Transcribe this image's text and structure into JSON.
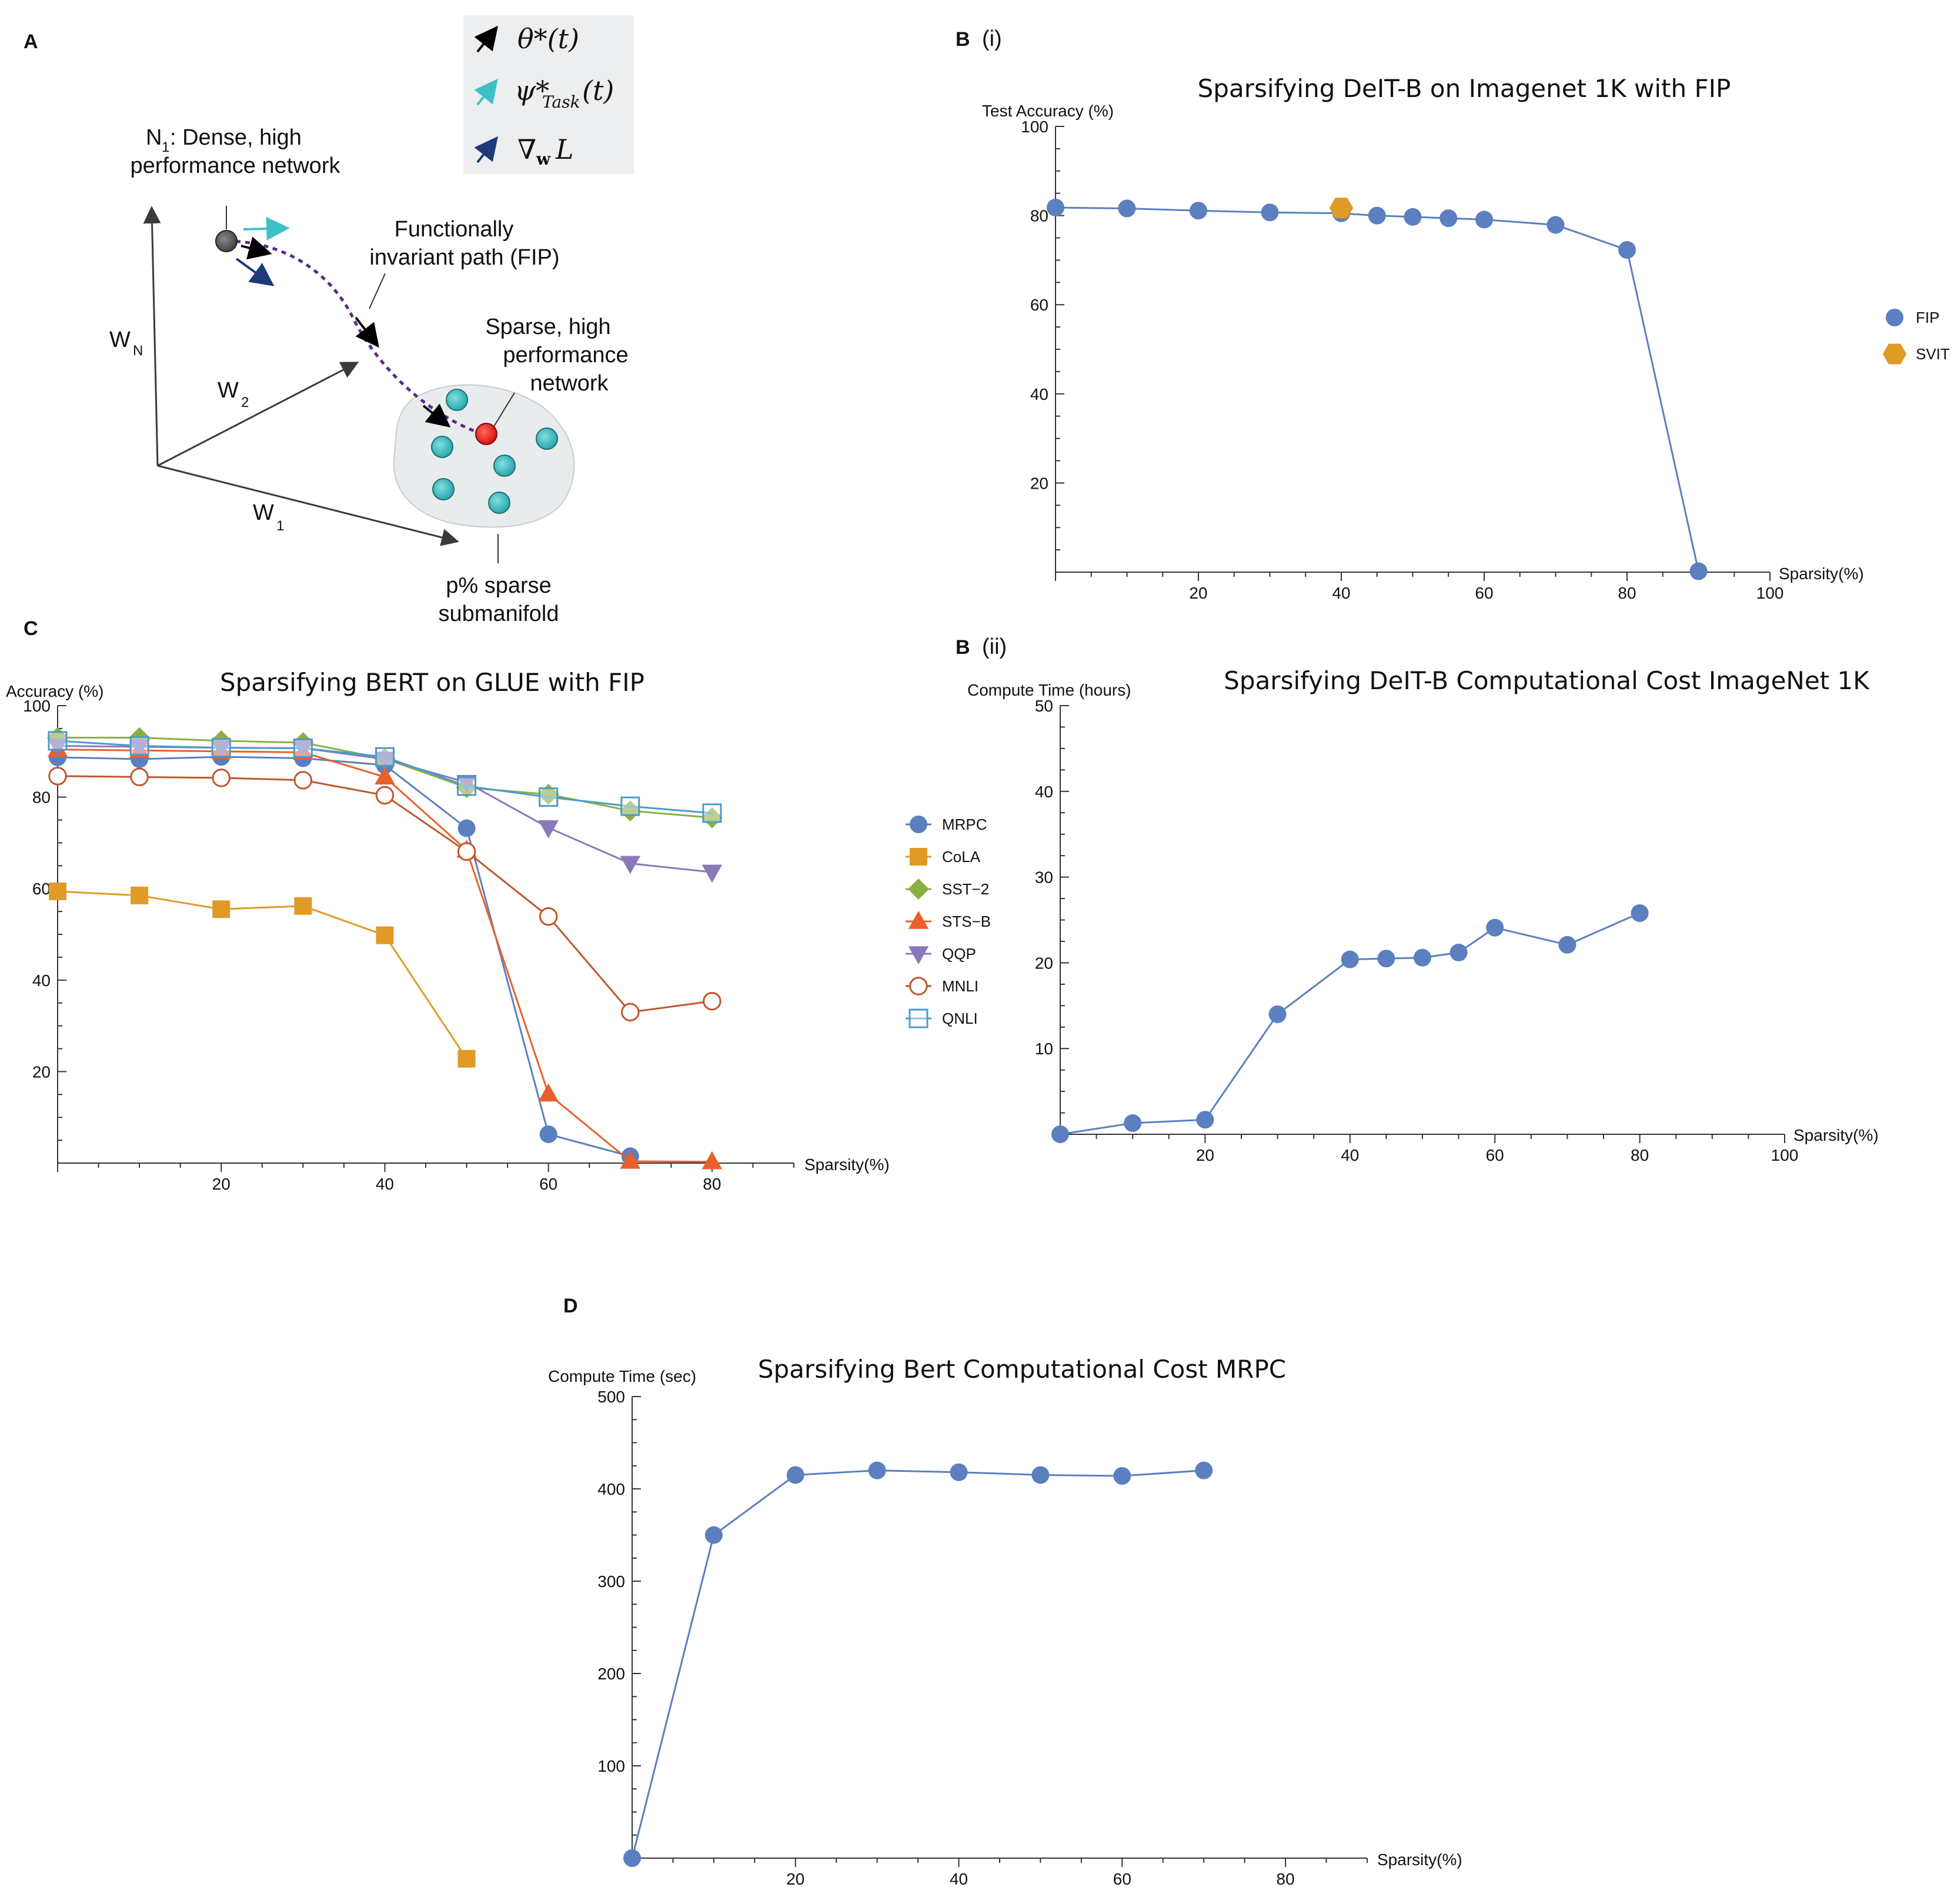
{
  "panels": {
    "A": "A",
    "Bi_letter": "B",
    "Bi_sub": "(i)",
    "Bii_letter": "B",
    "Bii_sub": "(ii)",
    "C": "C",
    "D": "D"
  },
  "diagram": {
    "legend_theta": "θ*(t)",
    "legend_psi": "ψ*",
    "legend_psi_sub": "Task",
    "legend_psi_tail": "(t)",
    "legend_grad": "∇",
    "legend_grad_sub": "w",
    "legend_grad_tail": "L",
    "n1_line1": "N",
    "n1_sub": "1",
    "n1_line1_tail": ":  Dense, high",
    "n1_line2": "performance network",
    "fip_line1": "Functionally",
    "fip_line2": "invariant path (FIP)",
    "sparse_line1": "Sparse, high",
    "sparse_line2": "performance",
    "sparse_line3": "network",
    "wn": "W",
    "wn_sub": "N",
    "w2": "W",
    "w2_sub": "2",
    "w1": "W",
    "w1_sub": "1",
    "manifold_line1": "p% sparse",
    "manifold_line2": "submanifold",
    "colors": {
      "teal": "#3ec1c6",
      "dark_blue": "#1f3a7a",
      "purple": "#5a2a8a",
      "red": "#e8211d"
    }
  },
  "chart_data": [
    {
      "id": "Bi",
      "type": "scatter",
      "title": "Sparsifying DeIT-B on Imagenet 1K with FIP",
      "xlabel": "Sparsity(%)",
      "ylabel": "Test Accuracy (%)",
      "xlim": [
        0,
        100
      ],
      "ylim": [
        0,
        100
      ],
      "xticks": [
        20,
        40,
        60,
        80,
        100
      ],
      "yticks": [
        20,
        40,
        60,
        80,
        100
      ],
      "legend_position": "right",
      "series": [
        {
          "name": "FIP",
          "color": "#5b7fbf",
          "marker": "circle",
          "line": true,
          "x": [
            0,
            10,
            20,
            30,
            40,
            45,
            50,
            55,
            60,
            70,
            80,
            90
          ],
          "y": [
            81.8,
            81.6,
            81.1,
            80.7,
            80.5,
            80.0,
            79.7,
            79.4,
            79.1,
            77.9,
            72.3,
            0.2
          ]
        },
        {
          "name": "SVIT",
          "color": "#e09a26",
          "marker": "hexagon",
          "line": false,
          "x": [
            40
          ],
          "y": [
            81.7
          ]
        }
      ]
    },
    {
      "id": "Bii",
      "type": "line",
      "title": "Sparsifying DeIT-B Computational Cost ImageNet 1K",
      "xlabel": "Sparsity(%)",
      "ylabel": "Compute Time (hours)",
      "xlim": [
        0,
        100
      ],
      "ylim": [
        0,
        50
      ],
      "xticks": [
        20,
        40,
        60,
        80,
        100
      ],
      "yticks": [
        10,
        20,
        30,
        40,
        50
      ],
      "series": [
        {
          "name": "FIP",
          "color": "#5b7fbf",
          "marker": "circle",
          "line": true,
          "x": [
            0,
            10,
            20,
            30,
            40,
            45,
            50,
            55,
            60,
            70,
            80
          ],
          "y": [
            0,
            1.3,
            1.7,
            14.0,
            20.4,
            20.5,
            20.6,
            21.2,
            24.1,
            22.1,
            25.8
          ]
        }
      ]
    },
    {
      "id": "C",
      "type": "line",
      "title": "Sparsifying BERT on GLUE with FIP",
      "xlabel": "Sparsity(%)",
      "ylabel": "Accuracy (%)",
      "xlim": [
        0,
        90
      ],
      "ylim": [
        0,
        100
      ],
      "xticks": [
        20,
        40,
        60,
        80
      ],
      "yticks": [
        20,
        40,
        60,
        80,
        100
      ],
      "legend_position": "right",
      "series": [
        {
          "name": "MRPC",
          "color": "#5b7fbf",
          "marker": "circle",
          "x": [
            0,
            10,
            20,
            30,
            40,
            50,
            60,
            70
          ],
          "y": [
            88.7,
            88.3,
            88.8,
            88.5,
            87.0,
            73.2,
            6.3,
            1.5
          ]
        },
        {
          "name": "CoLA",
          "color": "#e09a26",
          "marker": "square",
          "x": [
            0,
            10,
            20,
            30,
            40,
            50
          ],
          "y": [
            59.4,
            58.5,
            55.5,
            56.2,
            49.8,
            22.8
          ]
        },
        {
          "name": "SST−2",
          "color": "#8bb042",
          "marker": "diamond",
          "x": [
            0,
            10,
            20,
            30,
            40,
            50,
            60,
            70,
            80
          ],
          "y": [
            93.0,
            93.0,
            92.3,
            91.9,
            88.4,
            82.1,
            80.6,
            77.0,
            75.5
          ]
        },
        {
          "name": "STS−B",
          "color": "#e8602c",
          "marker": "triangle-up",
          "x": [
            0,
            10,
            20,
            30,
            40,
            50,
            60,
            70,
            80
          ],
          "y": [
            90.4,
            90.2,
            90.0,
            89.8,
            84.4,
            68.4,
            15.1,
            0.4,
            0.3
          ]
        },
        {
          "name": "QQP",
          "color": "#8a78bb",
          "marker": "triangle-down",
          "x": [
            0,
            10,
            20,
            30,
            40,
            50,
            60,
            70,
            80
          ],
          "y": [
            91.2,
            91.0,
            90.8,
            90.7,
            88.3,
            83.2,
            73.3,
            65.5,
            63.6
          ]
        },
        {
          "name": "MNLI",
          "color": "#c0562a",
          "marker": "open-circle",
          "x": [
            0,
            10,
            20,
            30,
            40,
            50,
            60,
            70,
            80
          ],
          "y": [
            84.6,
            84.4,
            84.2,
            83.7,
            80.4,
            68.1,
            53.9,
            33.0,
            35.4
          ]
        },
        {
          "name": "QNLI",
          "color": "#4a9cc8",
          "marker": "open-square",
          "x": [
            0,
            10,
            20,
            30,
            40,
            50,
            60,
            70,
            80
          ],
          "y": [
            92.3,
            91.2,
            90.8,
            90.7,
            88.8,
            82.4,
            80.0,
            78.0,
            76.5
          ]
        }
      ]
    },
    {
      "id": "D",
      "type": "line",
      "title": "Sparsifying Bert Computational Cost MRPC",
      "xlabel": "Sparsity(%)",
      "ylabel": "Compute Time (sec)",
      "xlim": [
        0,
        90
      ],
      "ylim": [
        0,
        500
      ],
      "xticks": [
        20,
        40,
        60,
        80
      ],
      "yticks": [
        100,
        200,
        300,
        400,
        500
      ],
      "series": [
        {
          "name": "MRPC",
          "color": "#5b7fbf",
          "marker": "circle",
          "x": [
            0,
            10,
            20,
            30,
            40,
            50,
            60,
            70
          ],
          "y": [
            0,
            350,
            415,
            420,
            418,
            415,
            414,
            420
          ]
        }
      ]
    }
  ]
}
